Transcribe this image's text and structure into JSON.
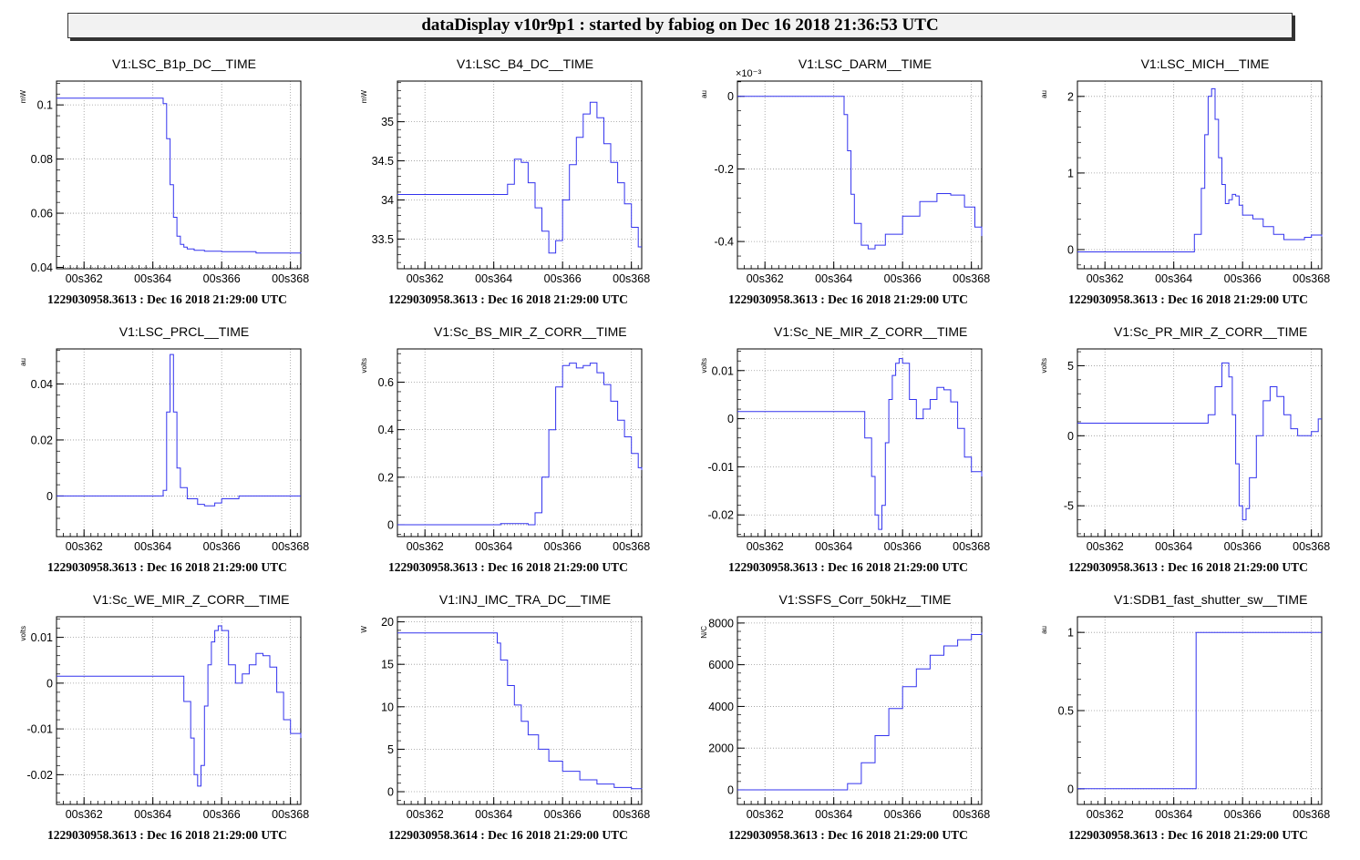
{
  "header": {
    "title": "dataDisplay v10r9p1 : started by fabiog on Dec 16 2018 21:36:53 UTC"
  },
  "chart_data": [
    {
      "type": "line",
      "title": "V1:LSC_B1p_DC__TIME",
      "ylabel": "mW",
      "xticks": [
        "00s362",
        "00s364",
        "00s366",
        "00s368"
      ],
      "xlim": [
        361.2,
        368.3
      ],
      "ylim": [
        0.0395,
        0.1088
      ],
      "yticks": [
        0.04,
        0.06,
        0.08,
        0.1
      ],
      "ytick_labels": [
        "0.04",
        "0.06",
        "0.08",
        "0.1"
      ],
      "exponent": "",
      "x": [
        361.2,
        364.2,
        364.3,
        364.4,
        364.5,
        364.6,
        364.7,
        364.8,
        364.9,
        365.0,
        365.2,
        365.5,
        366.0,
        367.0,
        368.3
      ],
      "y": [
        0.1025,
        0.1025,
        0.1005,
        0.0875,
        0.0705,
        0.0585,
        0.0515,
        0.0485,
        0.0475,
        0.0468,
        0.0463,
        0.046,
        0.0458,
        0.0453,
        0.0452
      ],
      "footer": "1229030958.3613 : Dec 16 2018 21:29:00 UTC"
    },
    {
      "type": "line",
      "title": "V1:LSC_B4_DC__TIME",
      "ylabel": "mW",
      "xticks": [
        "00s362",
        "00s364",
        "00s366",
        "00s368"
      ],
      "xlim": [
        361.2,
        368.3
      ],
      "ylim": [
        33.12,
        35.52
      ],
      "yticks": [
        33.5,
        34,
        34.5,
        35
      ],
      "ytick_labels": [
        "33.5",
        "34",
        "34.5",
        "35"
      ],
      "exponent": "",
      "x": [
        361.2,
        364.2,
        364.4,
        364.6,
        364.8,
        365.0,
        365.2,
        365.4,
        365.6,
        365.8,
        366.0,
        366.2,
        366.4,
        366.6,
        366.8,
        367.0,
        367.2,
        367.4,
        367.6,
        367.8,
        368.0,
        368.2,
        368.3
      ],
      "y": [
        34.07,
        34.07,
        34.2,
        34.52,
        34.48,
        34.22,
        33.9,
        33.6,
        33.32,
        33.48,
        34.0,
        34.45,
        34.8,
        35.1,
        35.25,
        35.05,
        34.72,
        34.48,
        34.22,
        33.95,
        33.65,
        33.4,
        33.4
      ],
      "footer": "1229030958.3613 : Dec 16 2018 21:29:00 UTC"
    },
    {
      "type": "line",
      "title": "V1:LSC_DARM__TIME",
      "ylabel": "au",
      "xticks": [
        "00s362",
        "00s364",
        "00s366",
        "00s368"
      ],
      "xlim": [
        361.2,
        368.3
      ],
      "ylim": [
        -0.000475,
        4.2e-05
      ],
      "yticks": [
        0,
        -0.0002,
        -0.0004
      ],
      "ytick_labels": [
        "0",
        "-0.2",
        "-0.4"
      ],
      "exponent": "×10⁻³",
      "x": [
        361.2,
        364.2,
        364.3,
        364.4,
        364.5,
        364.6,
        364.8,
        365.0,
        365.2,
        365.5,
        366.0,
        366.5,
        367.0,
        367.4,
        367.8,
        368.1,
        368.3
      ],
      "y": [
        0.0,
        0.0,
        -5e-05,
        -0.00015,
        -0.00027,
        -0.00035,
        -0.00041,
        -0.00042,
        -0.00041,
        -0.00038,
        -0.00033,
        -0.00029,
        -0.000268,
        -0.000272,
        -0.000305,
        -0.00036,
        -0.000385
      ],
      "footer": "1229030958.3613 : Dec 16 2018 21:29:00 UTC"
    },
    {
      "type": "line",
      "title": "V1:LSC_MICH__TIME",
      "ylabel": "au",
      "xticks": [
        "00s362",
        "00s364",
        "00s366",
        "00s368"
      ],
      "xlim": [
        361.2,
        368.3
      ],
      "ylim": [
        -0.25,
        2.2
      ],
      "yticks": [
        0,
        1,
        2
      ],
      "ytick_labels": [
        "0",
        "1",
        "2"
      ],
      "exponent": "",
      "x": [
        361.2,
        364.4,
        364.6,
        364.8,
        364.9,
        365.0,
        365.1,
        365.2,
        365.3,
        365.4,
        365.5,
        365.6,
        365.7,
        365.8,
        365.9,
        366.0,
        366.3,
        366.6,
        366.9,
        367.2,
        367.5,
        367.8,
        368.0,
        368.3
      ],
      "y": [
        -0.03,
        -0.03,
        0.2,
        0.8,
        1.5,
        2.0,
        2.1,
        1.7,
        1.2,
        0.85,
        0.6,
        0.65,
        0.72,
        0.7,
        0.58,
        0.45,
        0.4,
        0.3,
        0.2,
        0.13,
        0.13,
        0.16,
        0.19,
        0.17
      ],
      "footer": "1229030958.3613 : Dec 16 2018 21:29:00 UTC"
    },
    {
      "type": "line",
      "title": "V1:LSC_PRCL__TIME",
      "ylabel": "au",
      "xticks": [
        "00s362",
        "00s364",
        "00s366",
        "00s368"
      ],
      "xlim": [
        361.2,
        368.3
      ],
      "ylim": [
        -0.0145,
        0.0525
      ],
      "yticks": [
        0,
        0.02,
        0.04
      ],
      "ytick_labels": [
        "0",
        "0.02",
        "0.04"
      ],
      "exponent": "",
      "x": [
        361.2,
        364.2,
        364.3,
        364.4,
        364.5,
        364.6,
        364.7,
        364.8,
        365.0,
        365.3,
        365.5,
        365.8,
        366.0,
        366.5,
        367.0,
        368.3
      ],
      "y": [
        0.0,
        0.0,
        0.002,
        0.03,
        0.0505,
        0.03,
        0.01,
        0.003,
        -0.001,
        -0.003,
        -0.0035,
        -0.0025,
        -0.001,
        0.0,
        0.0,
        0.0
      ],
      "footer": "1229030958.3613 : Dec 16 2018 21:29:00 UTC"
    },
    {
      "type": "line",
      "title": "V1:Sc_BS_MIR_Z_CORR__TIME",
      "ylabel": "volts",
      "xticks": [
        "00s362",
        "00s364",
        "00s366",
        "00s368"
      ],
      "xlim": [
        361.2,
        368.3
      ],
      "ylim": [
        -0.05,
        0.74
      ],
      "yticks": [
        0,
        0.2,
        0.4,
        0.6
      ],
      "ytick_labels": [
        "0",
        "0.2",
        "0.4",
        "0.6"
      ],
      "exponent": "",
      "x": [
        361.2,
        363.2,
        364.2,
        365.0,
        365.2,
        365.4,
        365.6,
        365.8,
        366.0,
        366.2,
        366.4,
        366.6,
        366.8,
        367.0,
        367.2,
        367.4,
        367.6,
        367.8,
        368.0,
        368.2,
        368.3
      ],
      "y": [
        0.0,
        0.0,
        0.005,
        0.0,
        0.05,
        0.2,
        0.4,
        0.58,
        0.67,
        0.68,
        0.66,
        0.67,
        0.68,
        0.64,
        0.59,
        0.52,
        0.44,
        0.37,
        0.3,
        0.24,
        0.23
      ],
      "footer": "1229030958.3613 : Dec 16 2018 21:29:00 UTC"
    },
    {
      "type": "line",
      "title": "V1:Sc_NE_MIR_Z_CORR__TIME",
      "ylabel": "volts",
      "xticks": [
        "00s362",
        "00s364",
        "00s366",
        "00s368"
      ],
      "xlim": [
        361.2,
        368.3
      ],
      "ylim": [
        -0.0245,
        0.0145
      ],
      "yticks": [
        0.01,
        0,
        -0.01,
        -0.02
      ],
      "ytick_labels": [
        "0.01",
        "0",
        "-0.01",
        "-0.02"
      ],
      "exponent": "",
      "x": [
        361.2,
        364.7,
        364.9,
        365.1,
        365.2,
        365.3,
        365.4,
        365.5,
        365.6,
        365.7,
        365.8,
        365.9,
        366.0,
        366.2,
        366.4,
        366.6,
        366.8,
        367.0,
        367.2,
        367.4,
        367.6,
        367.8,
        368.0,
        368.3
      ],
      "y": [
        0.0015,
        0.0015,
        -0.004,
        -0.012,
        -0.02,
        -0.023,
        -0.018,
        -0.005,
        0.004,
        0.009,
        0.0115,
        0.0125,
        0.0115,
        0.004,
        0.0,
        0.002,
        0.004,
        0.0065,
        0.006,
        0.0035,
        -0.002,
        -0.008,
        -0.011,
        -0.012
      ],
      "footer": "1229030958.3613 : Dec 16 2018 21:29:00 UTC"
    },
    {
      "type": "line",
      "title": "V1:Sc_PR_MIR_Z_CORR__TIME",
      "ylabel": "volts",
      "xticks": [
        "00s362",
        "00s364",
        "00s366",
        "00s368"
      ],
      "xlim": [
        361.2,
        368.3
      ],
      "ylim": [
        -7.2,
        6.2
      ],
      "yticks": [
        5,
        0,
        -5
      ],
      "ytick_labels": [
        "5",
        "0",
        "-5"
      ],
      "exponent": "",
      "x": [
        361.2,
        364.8,
        365.0,
        365.2,
        365.4,
        365.6,
        365.7,
        365.8,
        365.9,
        366.0,
        366.1,
        366.2,
        366.4,
        366.6,
        366.8,
        367.0,
        367.2,
        367.4,
        367.6,
        367.8,
        368.0,
        368.2,
        368.3
      ],
      "y": [
        0.9,
        0.9,
        1.5,
        3.5,
        5.2,
        4.2,
        1.5,
        -2.0,
        -5.0,
        -6.0,
        -5.2,
        -3.0,
        0.0,
        2.5,
        3.5,
        2.8,
        1.5,
        0.5,
        0.0,
        0.0,
        0.3,
        1.2,
        1.2
      ],
      "footer": "1229030958.3613 : Dec 16 2018 21:29:00 UTC"
    },
    {
      "type": "line",
      "title": "V1:Sc_WE_MIR_Z_CORR__TIME",
      "ylabel": "volts",
      "xticks": [
        "00s362",
        "00s364",
        "00s366",
        "00s368"
      ],
      "xlim": [
        361.2,
        368.3
      ],
      "ylim": [
        -0.0265,
        0.0145
      ],
      "yticks": [
        0.01,
        0,
        -0.01,
        -0.02
      ],
      "ytick_labels": [
        "0.01",
        "0",
        "-0.01",
        "-0.02"
      ],
      "exponent": "",
      "x": [
        361.2,
        364.7,
        364.9,
        365.1,
        365.2,
        365.3,
        365.4,
        365.5,
        365.6,
        365.7,
        365.8,
        365.9,
        366.0,
        366.2,
        366.4,
        366.6,
        366.8,
        367.0,
        367.2,
        367.4,
        367.6,
        367.8,
        368.0,
        368.3
      ],
      "y": [
        0.0015,
        0.0015,
        -0.004,
        -0.012,
        -0.02,
        -0.0225,
        -0.018,
        -0.005,
        0.004,
        0.009,
        0.0115,
        0.0125,
        0.0115,
        0.004,
        0.0,
        0.002,
        0.004,
        0.0065,
        0.006,
        0.0035,
        -0.002,
        -0.008,
        -0.011,
        -0.012
      ],
      "footer": "1229030958.3613 : Dec 16 2018 21:29:00 UTC"
    },
    {
      "type": "line",
      "title": "V1:INJ_IMC_TRA_DC__TIME",
      "ylabel": "W",
      "xticks": [
        "00s362",
        "00s364",
        "00s366",
        "00s368"
      ],
      "xlim": [
        361.2,
        368.3
      ],
      "ylim": [
        -1.5,
        20.6
      ],
      "yticks": [
        0,
        5,
        10,
        15,
        20
      ],
      "ytick_labels": [
        "0",
        "5",
        "10",
        "15",
        "20"
      ],
      "exponent": "",
      "x": [
        361.2,
        364.0,
        364.1,
        364.2,
        364.4,
        364.6,
        364.8,
        365.0,
        365.3,
        365.6,
        366.0,
        366.5,
        367.0,
        367.5,
        368.0,
        368.3
      ],
      "y": [
        18.7,
        18.7,
        17.5,
        15.5,
        12.5,
        10.2,
        8.3,
        6.7,
        5.0,
        3.6,
        2.4,
        1.4,
        0.9,
        0.5,
        0.35,
        0.3
      ],
      "footer": "1229030958.3614 : Dec 16 2018 21:29:00 UTC"
    },
    {
      "type": "line",
      "title": "V1:SSFS_Corr_50kHz__TIME",
      "ylabel": "N/C",
      "xticks": [
        "00s362",
        "00s364",
        "00s366",
        "00s368"
      ],
      "xlim": [
        361.2,
        368.3
      ],
      "ylim": [
        -700,
        8300
      ],
      "yticks": [
        0,
        2000,
        4000,
        6000,
        8000
      ],
      "ytick_labels": [
        "0",
        "2000",
        "4000",
        "6000",
        "8000"
      ],
      "exponent": "",
      "x": [
        361.2,
        364.1,
        364.4,
        364.8,
        365.2,
        365.6,
        366.0,
        366.4,
        366.8,
        367.2,
        367.6,
        368.0,
        368.3
      ],
      "y": [
        0,
        0,
        300,
        1300,
        2600,
        3900,
        4950,
        5800,
        6450,
        6900,
        7200,
        7450,
        7550
      ],
      "footer": "1229030958.3613 : Dec 16 2018 21:29:00 UTC"
    },
    {
      "type": "line",
      "title": "V1:SDB1_fast_shutter_sw__TIME",
      "ylabel": "au",
      "xticks": [
        "00s362",
        "00s364",
        "00s366",
        "00s368"
      ],
      "xlim": [
        361.2,
        368.3
      ],
      "ylim": [
        -0.1,
        1.1
      ],
      "yticks": [
        0,
        0.5,
        1
      ],
      "ytick_labels": [
        "0",
        "0.5",
        "1"
      ],
      "exponent": "",
      "x": [
        361.2,
        364.65,
        364.65,
        368.3
      ],
      "y": [
        0,
        0,
        1,
        1
      ],
      "footer": "1229030958.3613 : Dec 16 2018 21:29:00 UTC"
    }
  ],
  "colors": {
    "line": "#3333ee",
    "frame": "#000000",
    "grid": "#888888"
  }
}
